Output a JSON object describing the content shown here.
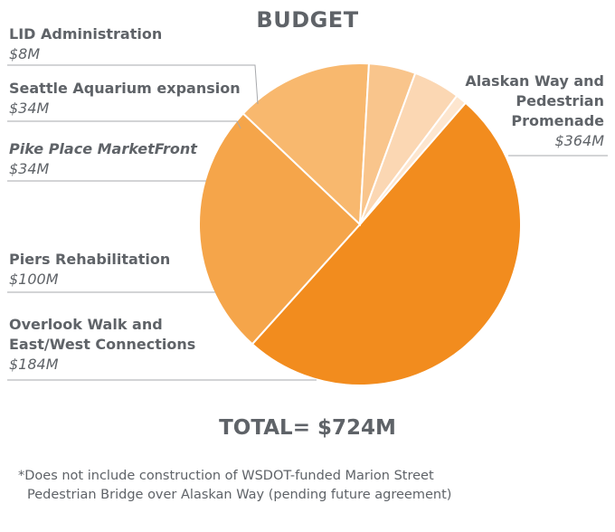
{
  "chart_data": {
    "type": "pie",
    "title": "BUDGET",
    "total_label": "TOTAL= $724M",
    "footnote": [
      "*Does not include construction of WSDOT-funded Marion Street",
      "Pedestrian Bridge over Alaskan Way (pending future agreement)"
    ],
    "slices": [
      {
        "name_lines": [
          "Alaskan Way and",
          "Pedestrian",
          "Promenade"
        ],
        "value_label": "$364M",
        "value": 364,
        "color": "#f28c1e"
      },
      {
        "name_lines": [
          "Overlook Walk and",
          "East/West Connections"
        ],
        "value_label": "$184M",
        "value": 184,
        "color": "#f5a54a"
      },
      {
        "name_lines": [
          "Piers Rehabilitation"
        ],
        "value_label": "$100M",
        "value": 100,
        "color": "#f8b86e"
      },
      {
        "name_lines": [
          "Pike Place MarketFront"
        ],
        "value_label": "$34M",
        "value": 34,
        "color": "#f9c58c"
      },
      {
        "name_lines": [
          "Seattle Aquarium expansion"
        ],
        "value_label": "$34M",
        "value": 34,
        "color": "#fbd7b3"
      },
      {
        "name_lines": [
          "LID Administration"
        ],
        "value_label": "$8M",
        "value": 8,
        "color": "#fde6cf"
      }
    ]
  }
}
